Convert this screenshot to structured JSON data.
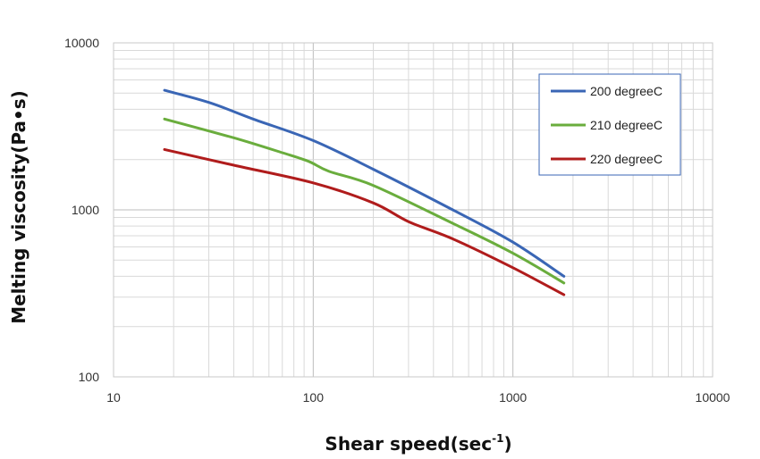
{
  "chart_data": {
    "type": "line",
    "title": "",
    "xlabel": "Shear speed(sec",
    "xlabel_superscript": "-1",
    "xlabel_close": ")",
    "ylabel": "Melting viscosity(Pa•s)",
    "x_scale": "log",
    "y_scale": "log",
    "xlim": [
      10,
      10000
    ],
    "ylim": [
      100,
      10000
    ],
    "x_ticks": [
      "10",
      "100",
      "1000",
      "10000"
    ],
    "y_ticks": [
      "100",
      "1000",
      "10000"
    ],
    "grid": true,
    "legend_position": "top-right",
    "series": [
      {
        "name": "200 degreeC",
        "color": "#3a66b5",
        "points": [
          [
            18,
            5200
          ],
          [
            30,
            4400
          ],
          [
            50,
            3500
          ],
          [
            100,
            2600
          ],
          [
            200,
            1750
          ],
          [
            500,
            1000
          ],
          [
            1000,
            640
          ],
          [
            1800,
            400
          ]
        ]
      },
      {
        "name": "210 degreeC",
        "color": "#6aad3d",
        "points": [
          [
            18,
            3500
          ],
          [
            40,
            2700
          ],
          [
            70,
            2200
          ],
          [
            95,
            1950
          ],
          [
            120,
            1700
          ],
          [
            200,
            1400
          ],
          [
            500,
            830
          ],
          [
            1000,
            550
          ],
          [
            1800,
            365
          ]
        ]
      },
      {
        "name": "220 degreeC",
        "color": "#b01c1c",
        "points": [
          [
            18,
            2300
          ],
          [
            40,
            1850
          ],
          [
            100,
            1450
          ],
          [
            200,
            1100
          ],
          [
            300,
            850
          ],
          [
            500,
            670
          ],
          [
            1000,
            450
          ],
          [
            1800,
            310
          ]
        ]
      }
    ]
  }
}
